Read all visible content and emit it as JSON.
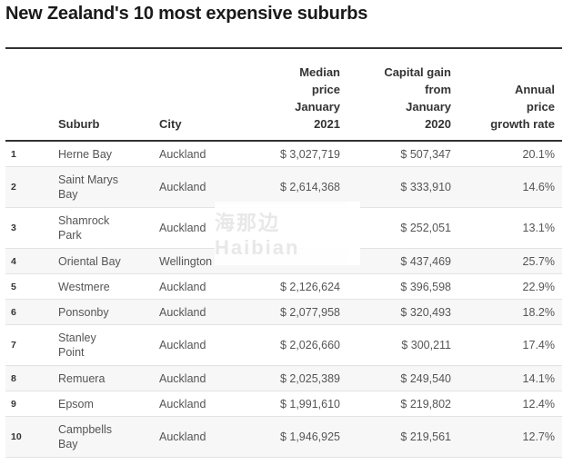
{
  "title": "New Zealand's 10 most expensive suburbs",
  "columns": {
    "suburb": "Suburb",
    "city": "City",
    "median": "Median\nprice\nJanuary\n2021",
    "gain": "Capital gain\nfrom\nJanuary\n2020",
    "growth": "Annual\nprice\ngrowth rate"
  },
  "rows": [
    {
      "rank": "1",
      "suburb": "Herne Bay",
      "city": "Auckland",
      "median": "$ 3,027,719",
      "gain": "$ 507,347",
      "growth": "20.1%"
    },
    {
      "rank": "2",
      "suburb": "Saint Marys\nBay",
      "city": "Auckland",
      "median": "$ 2,614,368",
      "gain": "$ 333,910",
      "growth": "14.6%"
    },
    {
      "rank": "3",
      "suburb": "Shamrock\nPark",
      "city": "Auckland",
      "median": "",
      "gain": "$ 252,051",
      "growth": "13.1%"
    },
    {
      "rank": "4",
      "suburb": "Oriental Bay",
      "city": "Wellington",
      "median": "",
      "gain": "$ 437,469",
      "growth": "25.7%"
    },
    {
      "rank": "5",
      "suburb": "Westmere",
      "city": "Auckland",
      "median": "$ 2,126,624",
      "gain": "$ 396,598",
      "growth": "22.9%"
    },
    {
      "rank": "6",
      "suburb": "Ponsonby",
      "city": "Auckland",
      "median": "$ 2,077,958",
      "gain": "$ 320,493",
      "growth": "18.2%"
    },
    {
      "rank": "7",
      "suburb": "Stanley\nPoint",
      "city": "Auckland",
      "median": "$ 2,026,660",
      "gain": "$ 300,211",
      "growth": "17.4%"
    },
    {
      "rank": "8",
      "suburb": "Remuera",
      "city": "Auckland",
      "median": "$ 2,025,389",
      "gain": "$ 249,540",
      "growth": "14.1%"
    },
    {
      "rank": "9",
      "suburb": "Epsom",
      "city": "Auckland",
      "median": "$ 1,991,610",
      "gain": "$ 219,802",
      "growth": "12.4%"
    },
    {
      "rank": "10",
      "suburb": "Campbells\nBay",
      "city": "Auckland",
      "median": "$ 1,946,925",
      "gain": "$ 219,561",
      "growth": "12.7%"
    }
  ],
  "watermark": "海那边 Haibian"
}
